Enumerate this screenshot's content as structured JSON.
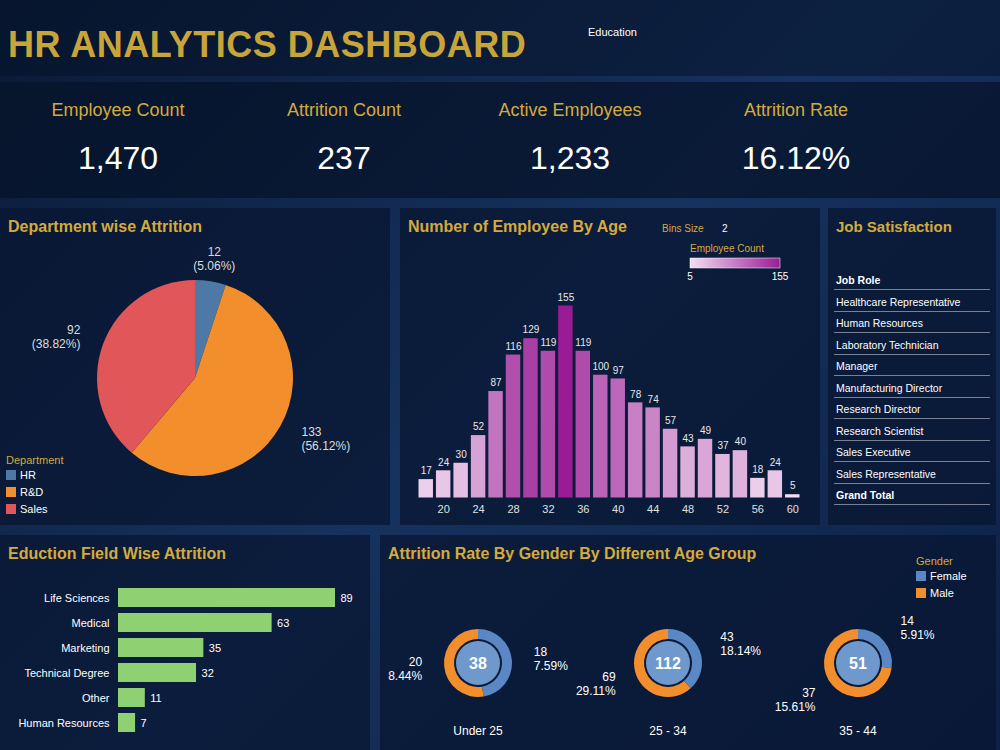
{
  "header": {
    "title": "HR ANALYTICS DASHBOARD",
    "filter_label": "Education"
  },
  "kpis": [
    {
      "label": "Employee Count",
      "value": "1,470"
    },
    {
      "label": "Attrition Count",
      "value": "237"
    },
    {
      "label": "Active Employees",
      "value": "1,233"
    },
    {
      "label": "Attrition Rate",
      "value": "16.12%"
    }
  ],
  "job_satisfaction_table": {
    "title": "Job Satisfaction",
    "header": "Job Role",
    "rows": [
      "Healthcare Representative",
      "Human Resources",
      "Laboratory Technician",
      "Manager",
      "Manufacturing Director",
      "Research Director",
      "Research Scientist",
      "Sales Executive",
      "Sales Representative"
    ],
    "total_row": "Grand Total"
  },
  "chart_data": [
    {
      "type": "pie",
      "title": "Department wise Attrition",
      "categories": [
        "HR",
        "R&D",
        "Sales"
      ],
      "values": [
        12,
        133,
        92
      ],
      "percent_labels": [
        "(5.06%)",
        "(56.12%)",
        "(38.82%)"
      ],
      "colors": [
        "#4e79a7",
        "#f28e2b",
        "#e15759"
      ],
      "data_labels": true,
      "legend": "bottom-left",
      "legend_title": "Department"
    },
    {
      "type": "histogram",
      "title": "Number of Employee By Age",
      "bins_size_label": "Bins Size",
      "bins_size": 2,
      "bins": [
        17,
        19,
        21,
        23,
        25,
        27,
        29,
        31,
        33,
        35,
        37,
        39,
        41,
        43,
        45,
        47,
        49,
        51,
        53,
        55,
        57,
        59,
        61
      ],
      "values": [
        17,
        24,
        30,
        52,
        87,
        116,
        129,
        119,
        155,
        119,
        100,
        97,
        78,
        74,
        57,
        43,
        49,
        37,
        40,
        18,
        24,
        5
      ],
      "xlim": [
        17,
        61
      ],
      "xticks": [
        20,
        24,
        28,
        32,
        36,
        40,
        44,
        48,
        52,
        56,
        60
      ],
      "ylim": [
        0,
        155
      ],
      "tick_labels": "x",
      "data_labels": true,
      "color_scale": {
        "title": "Employee Count",
        "range": [
          5,
          155
        ],
        "ticks": [
          5,
          155
        ]
      }
    },
    {
      "type": "bar",
      "orientation": "horizontal",
      "title": "Eduction Field Wise Attrition",
      "categories": [
        "Life Sciences",
        "Medical",
        "Marketing",
        "Technical Degree",
        "Other",
        "Human Resources"
      ],
      "values": [
        89,
        63,
        35,
        32,
        11,
        7
      ],
      "color": "#8fd072",
      "xlim": [
        0,
        89
      ],
      "tick_labels": "y",
      "data_labels": true
    },
    {
      "type": "donut",
      "title": "Attrition Rate By Gender By Different Age Group",
      "categories": [
        "Under 25",
        "25 - 34",
        "35 - 44"
      ],
      "totals": [
        38,
        112,
        51
      ],
      "series": [
        {
          "name": "Female",
          "color": "#5b87c5",
          "values": [
            18,
            43,
            14
          ],
          "percent_labels": [
            "7.59%",
            "18.14%",
            "5.91%"
          ]
        },
        {
          "name": "Male",
          "color": "#f28e2b",
          "values": [
            20,
            69,
            37
          ],
          "percent_labels": [
            "8.44%",
            "29.11%",
            "15.61%"
          ]
        }
      ],
      "data_labels": true,
      "legend": "top-right",
      "legend_title": "Gender"
    }
  ]
}
